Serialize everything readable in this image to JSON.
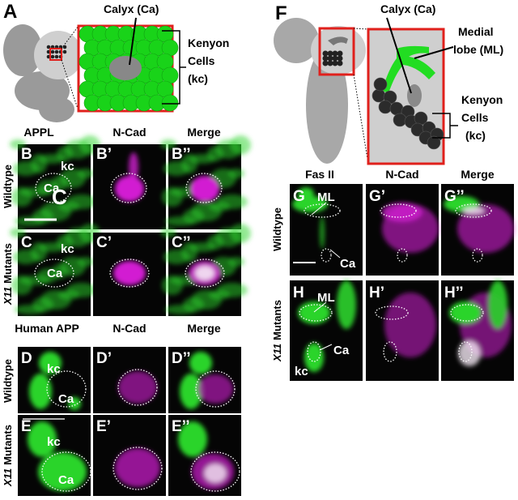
{
  "panel_a": {
    "letter": "A",
    "calyx_label": "Calyx (Ca)",
    "kenyon_label": [
      "Kenyon",
      "Cells",
      "(kc)"
    ]
  },
  "panel_bc": {
    "columns": [
      "APPL",
      "N-Cad",
      "Merge"
    ],
    "row_wildtype": "Wildtype",
    "row_mutant": {
      "italic": "X11",
      "text": "Mutants"
    },
    "row_b": [
      "B",
      "B’",
      "B’’"
    ],
    "row_c": [
      "C",
      "C’",
      "C’’"
    ],
    "labels": {
      "kc": "kc",
      "ca": "Ca",
      "c": "C"
    }
  },
  "panel_de": {
    "columns": [
      "Human APP",
      "N-Cad",
      "Merge"
    ],
    "row_wildtype": "Wildtype",
    "row_mutant": {
      "italic": "X11",
      "text": "Mutants"
    },
    "row_d": [
      "D",
      "D’",
      "D’’"
    ],
    "row_e": [
      "E",
      "E’",
      "E’’"
    ],
    "labels": {
      "kc": "kc",
      "ca": "Ca"
    }
  },
  "panel_f": {
    "letter": "F",
    "calyx_label": "Calyx (Ca)",
    "medial_label": [
      "Medial",
      "lobe (ML)"
    ],
    "kenyon_label": [
      "Kenyon",
      "Cells",
      "(kc)"
    ]
  },
  "panel_gh": {
    "columns": [
      "Fas II",
      "N-Cad",
      "Merge"
    ],
    "row_wildtype": "Wildtype",
    "row_mutant": {
      "italic": "X11",
      "text": "Mutants"
    },
    "row_g": [
      "G",
      "G’",
      "G’’"
    ],
    "row_h": [
      "H",
      "H’",
      "H’’"
    ],
    "labels": {
      "ml": "ML",
      "ca": "Ca",
      "kc": "kc"
    }
  }
}
